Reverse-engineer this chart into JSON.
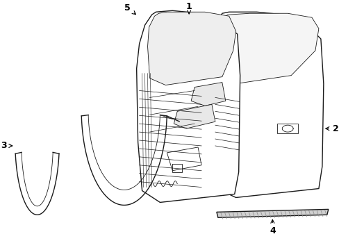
{
  "background_color": "#ffffff",
  "line_color": "#1a1a1a",
  "lw_main": 1.0,
  "lw_thin": 0.6,
  "figsize": [
    4.89,
    3.6
  ],
  "dpi": 100
}
